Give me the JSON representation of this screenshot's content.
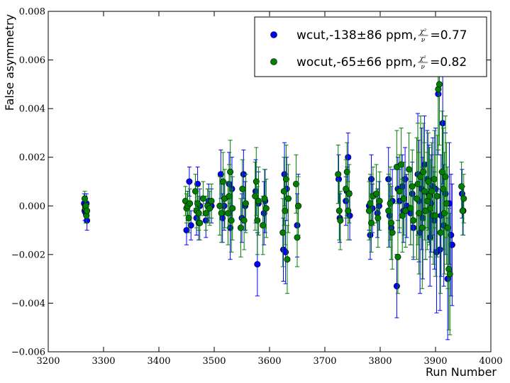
{
  "chart_data": {
    "type": "scatter",
    "title": "",
    "xlabel": "Run Number",
    "ylabel": "False asymmetry",
    "xlim": [
      3200,
      4000
    ],
    "ylim": [
      -0.006,
      0.008
    ],
    "xticks": [
      3200,
      3300,
      3400,
      3500,
      3600,
      3700,
      3800,
      3900,
      4000
    ],
    "yticks": [
      -0.006,
      -0.004,
      -0.002,
      0.0,
      0.002,
      0.004,
      0.006,
      0.008
    ],
    "xtick_labels": [
      "3200",
      "3300",
      "3400",
      "3500",
      "3600",
      "3700",
      "3800",
      "3900",
      "4000"
    ],
    "ytick_labels": [
      "−0.006",
      "−0.004",
      "−0.002",
      "0.000",
      "0.002",
      "0.004",
      "0.006",
      "0.008"
    ],
    "grid": false,
    "legend_position": "top-right",
    "series": [
      {
        "name": "wcut,-138±86 ppm,χ²/ν=0.77",
        "legend_prefix": "wcut,-138±86 ppm,",
        "legend_suffix": "=0.77",
        "color": "#0000ff",
        "points": [
          [
            3265,
            0.0001,
            0.0004
          ],
          [
            3266,
            -0.0002,
            0.0004
          ],
          [
            3267,
            0.0,
            0.0004
          ],
          [
            3268,
            -0.0003,
            0.0004
          ],
          [
            3269,
            0.0001,
            0.0004
          ],
          [
            3270,
            -0.0006,
            0.0004
          ],
          [
            3450,
            -0.001,
            0.0006
          ],
          [
            3452,
            0.0,
            0.0006
          ],
          [
            3455,
            0.001,
            0.0006
          ],
          [
            3458,
            -0.0008,
            0.0006
          ],
          [
            3468,
            -0.0005,
            0.0007
          ],
          [
            3470,
            0.0009,
            0.0007
          ],
          [
            3472,
            -0.0007,
            0.0007
          ],
          [
            3474,
            0.0,
            0.0007
          ],
          [
            3485,
            -0.0006,
            0.0007
          ],
          [
            3490,
            0.0002,
            0.0007
          ],
          [
            3495,
            0.0,
            0.0007
          ],
          [
            3512,
            0.0013,
            0.001
          ],
          [
            3515,
            -0.0005,
            0.001
          ],
          [
            3518,
            0.0,
            0.001
          ],
          [
            3527,
            0.0009,
            0.0013
          ],
          [
            3529,
            -0.0009,
            0.0013
          ],
          [
            3532,
            0.0007,
            0.0013
          ],
          [
            3550,
            -0.0005,
            0.001
          ],
          [
            3553,
            0.0013,
            0.001
          ],
          [
            3556,
            0.0,
            0.001
          ],
          [
            3575,
            0.0006,
            0.0013
          ],
          [
            3578,
            -0.0024,
            0.0013
          ],
          [
            3580,
            0.0001,
            0.0013
          ],
          [
            3590,
            -0.0003,
            0.0013
          ],
          [
            3592,
            0.0002,
            0.0013
          ],
          [
            3625,
            -0.0018,
            0.0013
          ],
          [
            3627,
            0.0013,
            0.0013
          ],
          [
            3629,
            -0.0019,
            0.0013
          ],
          [
            3631,
            0.0007,
            0.0013
          ],
          [
            3650,
            -0.0008,
            0.0013
          ],
          [
            3652,
            0.0,
            0.0013
          ],
          [
            3725,
            0.0011,
            0.001
          ],
          [
            3727,
            -0.0005,
            0.001
          ],
          [
            3738,
            0.0002,
            0.001
          ],
          [
            3740,
            0.0006,
            0.001
          ],
          [
            3742,
            0.002,
            0.001
          ],
          [
            3745,
            -0.0004,
            0.001
          ],
          [
            3780,
            0.0,
            0.001
          ],
          [
            3782,
            -0.0012,
            0.001
          ],
          [
            3784,
            0.0011,
            0.001
          ],
          [
            3786,
            -0.0001,
            0.001
          ],
          [
            3795,
            -0.0003,
            0.001
          ],
          [
            3798,
            0.0,
            0.001
          ],
          [
            3815,
            0.0011,
            0.0013
          ],
          [
            3817,
            -0.0004,
            0.0013
          ],
          [
            3820,
            -0.0009,
            0.0013
          ],
          [
            3822,
            0.0002,
            0.0013
          ],
          [
            3830,
            -0.0033,
            0.0013
          ],
          [
            3832,
            0.0007,
            0.0013
          ],
          [
            3835,
            0.0002,
            0.0013
          ],
          [
            3840,
            0.0008,
            0.0013
          ],
          [
            3842,
            -0.0002,
            0.0013
          ],
          [
            3845,
            0.0011,
            0.0013
          ],
          [
            3848,
            0.0,
            0.0013
          ],
          [
            3855,
            -0.0003,
            0.0013
          ],
          [
            3858,
            0.0005,
            0.0013
          ],
          [
            3860,
            -0.0009,
            0.0013
          ],
          [
            3868,
            0.0013,
            0.0025
          ],
          [
            3870,
            0.0002,
            0.0025
          ],
          [
            3872,
            -0.0011,
            0.0025
          ],
          [
            3875,
            0.0007,
            0.0025
          ],
          [
            3877,
            -0.0005,
            0.0025
          ],
          [
            3880,
            0.0017,
            0.002
          ],
          [
            3882,
            -0.0002,
            0.002
          ],
          [
            3885,
            0.0011,
            0.002
          ],
          [
            3888,
            0.0005,
            0.002
          ],
          [
            3890,
            -0.0013,
            0.002
          ],
          [
            3892,
            0.0001,
            0.002
          ],
          [
            3895,
            0.0008,
            0.002
          ],
          [
            3898,
            -0.0006,
            0.002
          ],
          [
            3900,
            0.0007,
            0.0025
          ],
          [
            3902,
            -0.0019,
            0.0025
          ],
          [
            3905,
            0.0046,
            0.0025
          ],
          [
            3908,
            -0.0018,
            0.0025
          ],
          [
            3910,
            -0.0004,
            0.0025
          ],
          [
            3913,
            0.0034,
            0.0025
          ],
          [
            3915,
            -0.0008,
            0.0025
          ],
          [
            3918,
            0.0005,
            0.0025
          ],
          [
            3922,
            -0.003,
            0.0025
          ],
          [
            3925,
            0.0001,
            0.0025
          ],
          [
            3928,
            -0.0012,
            0.0025
          ],
          [
            3930,
            -0.0016,
            0.0025
          ],
          [
            3948,
            0.0005,
            0.001
          ],
          [
            3950,
            -0.0002,
            0.001
          ]
        ]
      },
      {
        "name": "wocut,-65±66 ppm,χ²/ν=0.82",
        "legend_prefix": "wocut,-65±66 ppm,",
        "legend_suffix": "=0.82",
        "color": "#007f00",
        "points": [
          [
            3266,
            0.0003,
            0.0003
          ],
          [
            3267,
            -0.0001,
            0.0003
          ],
          [
            3268,
            0.0,
            0.0003
          ],
          [
            3269,
            -0.0004,
            0.0003
          ],
          [
            3270,
            -0.0002,
            0.0003
          ],
          [
            3448,
            0.0002,
            0.0006
          ],
          [
            3450,
            -0.0001,
            0.0006
          ],
          [
            3452,
            0.0,
            0.0006
          ],
          [
            3454,
            -0.0005,
            0.0006
          ],
          [
            3456,
            0.0001,
            0.0006
          ],
          [
            3466,
            0.0006,
            0.0007
          ],
          [
            3468,
            -0.0002,
            0.0007
          ],
          [
            3470,
            0.0001,
            0.0007
          ],
          [
            3472,
            -0.0003,
            0.0007
          ],
          [
            3474,
            -0.0007,
            0.0007
          ],
          [
            3480,
            0.0003,
            0.0007
          ],
          [
            3485,
            -0.0003,
            0.0007
          ],
          [
            3488,
            0.0,
            0.0007
          ],
          [
            3492,
            -0.0001,
            0.0007
          ],
          [
            3495,
            0.0002,
            0.0007
          ],
          [
            3510,
            0.0,
            0.0012
          ],
          [
            3513,
            -0.0003,
            0.0012
          ],
          [
            3516,
            0.001,
            0.0012
          ],
          [
            3519,
            0.0003,
            0.0012
          ],
          [
            3525,
            -0.0003,
            0.0013
          ],
          [
            3527,
            0.0004,
            0.0013
          ],
          [
            3529,
            0.0014,
            0.0013
          ],
          [
            3531,
            -0.0006,
            0.0013
          ],
          [
            3533,
            -0.0001,
            0.0013
          ],
          [
            3548,
            -0.0009,
            0.0012
          ],
          [
            3551,
            0.0007,
            0.0012
          ],
          [
            3554,
            -0.0006,
            0.0012
          ],
          [
            3557,
            0.0001,
            0.0012
          ],
          [
            3574,
            0.0004,
            0.0014
          ],
          [
            3576,
            0.001,
            0.0014
          ],
          [
            3578,
            -0.0006,
            0.0014
          ],
          [
            3580,
            0.0002,
            0.0014
          ],
          [
            3588,
            -0.0008,
            0.0012
          ],
          [
            3591,
            0.0003,
            0.0012
          ],
          [
            3594,
            -0.0001,
            0.0012
          ],
          [
            3624,
            -0.0011,
            0.0014
          ],
          [
            3626,
            0.0006,
            0.0014
          ],
          [
            3628,
            -0.0002,
            0.0014
          ],
          [
            3630,
            0.0011,
            0.0014
          ],
          [
            3632,
            -0.0022,
            0.0014
          ],
          [
            3634,
            0.0003,
            0.0014
          ],
          [
            3648,
            0.0009,
            0.0012
          ],
          [
            3650,
            -0.0013,
            0.0012
          ],
          [
            3652,
            0.0,
            0.0012
          ],
          [
            3724,
            0.0013,
            0.0012
          ],
          [
            3726,
            -0.0002,
            0.0012
          ],
          [
            3728,
            -0.0006,
            0.0012
          ],
          [
            3738,
            0.0007,
            0.0012
          ],
          [
            3740,
            0.0014,
            0.0012
          ],
          [
            3742,
            -0.0002,
            0.0012
          ],
          [
            3744,
            0.0005,
            0.0012
          ],
          [
            3780,
            -0.0002,
            0.0012
          ],
          [
            3782,
            0.0001,
            0.0012
          ],
          [
            3784,
            -0.0007,
            0.0012
          ],
          [
            3787,
            0.0004,
            0.0012
          ],
          [
            3793,
            0.0005,
            0.0012
          ],
          [
            3796,
            -0.0005,
            0.0012
          ],
          [
            3799,
            0.0002,
            0.0012
          ],
          [
            3815,
            -0.0002,
            0.0015
          ],
          [
            3818,
            0.0001,
            0.0015
          ],
          [
            3820,
            -0.0007,
            0.0015
          ],
          [
            3822,
            -0.0011,
            0.0015
          ],
          [
            3830,
            0.0016,
            0.0015
          ],
          [
            3832,
            -0.0021,
            0.0015
          ],
          [
            3835,
            0.0006,
            0.0015
          ],
          [
            3838,
            0.0017,
            0.0015
          ],
          [
            3840,
            -0.0004,
            0.0015
          ],
          [
            3843,
            0.0003,
            0.0015
          ],
          [
            3846,
            -0.0002,
            0.0015
          ],
          [
            3852,
            0.0015,
            0.0015
          ],
          [
            3855,
            -0.0001,
            0.0015
          ],
          [
            3858,
            0.0008,
            0.0015
          ],
          [
            3860,
            -0.0006,
            0.0015
          ],
          [
            3866,
            0.0003,
            0.0025
          ],
          [
            3868,
            0.0009,
            0.0025
          ],
          [
            3870,
            -0.0003,
            0.0025
          ],
          [
            3873,
            0.0012,
            0.0025
          ],
          [
            3876,
            -0.0009,
            0.0025
          ],
          [
            3878,
            0.0014,
            0.002
          ],
          [
            3880,
            0.0006,
            0.002
          ],
          [
            3882,
            -0.0002,
            0.002
          ],
          [
            3885,
            0.0002,
            0.002
          ],
          [
            3887,
            0.001,
            0.002
          ],
          [
            3889,
            0.0004,
            0.002
          ],
          [
            3891,
            -0.0001,
            0.002
          ],
          [
            3893,
            0.0006,
            0.002
          ],
          [
            3896,
            -0.0004,
            0.002
          ],
          [
            3898,
            0.0011,
            0.002
          ],
          [
            3900,
            -0.0004,
            0.0025
          ],
          [
            3903,
            0.0004,
            0.0025
          ],
          [
            3905,
            0.0048,
            0.0025
          ],
          [
            3907,
            0.005,
            0.0025
          ],
          [
            3909,
            -0.0011,
            0.0025
          ],
          [
            3912,
            0.0014,
            0.0025
          ],
          [
            3914,
            0.0007,
            0.0025
          ],
          [
            3916,
            -0.0003,
            0.0025
          ],
          [
            3918,
            0.0012,
            0.0025
          ],
          [
            3920,
            0.0001,
            0.0025
          ],
          [
            3922,
            -0.0009,
            0.0025
          ],
          [
            3924,
            -0.0026,
            0.0025
          ],
          [
            3926,
            -0.0028,
            0.0025
          ],
          [
            3947,
            0.0008,
            0.001
          ],
          [
            3949,
            -0.0002,
            0.001
          ],
          [
            3951,
            0.0003,
            0.001
          ]
        ]
      }
    ]
  }
}
